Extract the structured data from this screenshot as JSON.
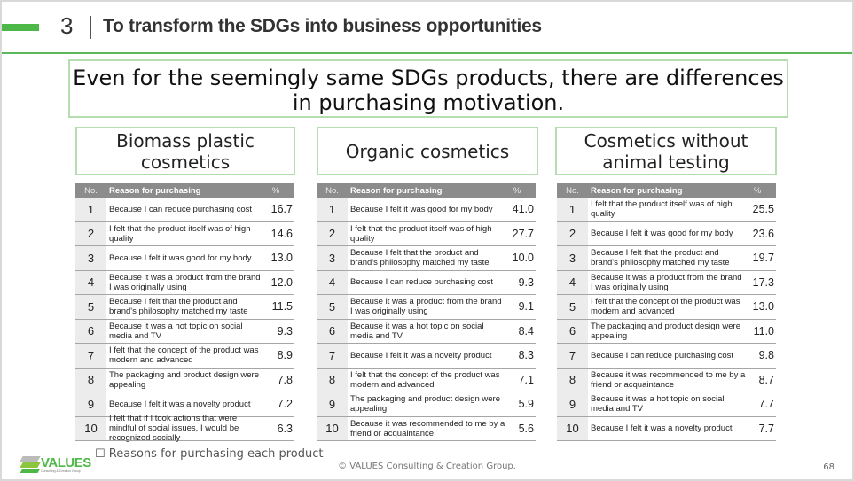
{
  "header": {
    "section_number": "3",
    "title": "To transform the SDGs into business opportunities",
    "accent_color": "#4db848"
  },
  "headline": "Even for the seemingly same SDGs products, there are differences in purchasing motivation.",
  "table_headers": {
    "no": "No.",
    "reason": "Reason for purchasing",
    "pct": "%"
  },
  "products": [
    {
      "name": "Biomass plastic cosmetics",
      "rows": [
        {
          "no": "1",
          "reason": "Because I can reduce purchasing cost",
          "pct": "16.7"
        },
        {
          "no": "2",
          "reason": "I felt that the product itself was of high quality",
          "pct": "14.6"
        },
        {
          "no": "3",
          "reason": "Because I felt it was good for my body",
          "pct": "13.0"
        },
        {
          "no": "4",
          "reason": "Because it was a product from the brand I was originally using",
          "pct": "12.0"
        },
        {
          "no": "5",
          "reason": "Because I felt that the product and brand's philosophy matched my taste",
          "pct": "11.5"
        },
        {
          "no": "6",
          "reason": "Because it was a hot topic on social media and TV",
          "pct": "9.3"
        },
        {
          "no": "7",
          "reason": "I felt that the concept of the product was modern and advanced",
          "pct": "8.9"
        },
        {
          "no": "8",
          "reason": "The packaging and product design were appealing",
          "pct": "7.8"
        },
        {
          "no": "9",
          "reason": "Because I felt it was a novelty product",
          "pct": "7.2"
        },
        {
          "no": "10",
          "reason": "I felt that if I took actions that were mindful of social issues, I would be recognized socially",
          "pct": "6.3"
        }
      ]
    },
    {
      "name": "Organic cosmetics",
      "rows": [
        {
          "no": "1",
          "reason": "Because I felt it was good for my body",
          "pct": "41.0"
        },
        {
          "no": "2",
          "reason": "I felt that the product itself was of high quality",
          "pct": "27.7"
        },
        {
          "no": "3",
          "reason": "Because I felt that the product and brand's philosophy matched my taste",
          "pct": "10.0"
        },
        {
          "no": "4",
          "reason": "Because I can reduce purchasing cost",
          "pct": "9.3"
        },
        {
          "no": "5",
          "reason": "Because it was a product from the brand I was originally using",
          "pct": "9.1"
        },
        {
          "no": "6",
          "reason": "Because it was a hot topic on social media and TV",
          "pct": "8.4"
        },
        {
          "no": "7",
          "reason": "Because I felt it was a novelty product",
          "pct": "8.3"
        },
        {
          "no": "8",
          "reason": "I felt that the concept of the product was modern and advanced",
          "pct": "7.1"
        },
        {
          "no": "9",
          "reason": "The packaging and product design were appealing",
          "pct": "5.9"
        },
        {
          "no": "10",
          "reason": "Because it was recommended to me by a friend or acquaintance",
          "pct": "5.6"
        }
      ]
    },
    {
      "name": "Cosmetics without animal testing",
      "rows": [
        {
          "no": "1",
          "reason": "I felt that the product itself was of high quality",
          "pct": "25.5"
        },
        {
          "no": "2",
          "reason": "Because I felt it was good for my body",
          "pct": "23.6"
        },
        {
          "no": "3",
          "reason": "Because I felt that the product and brand's philosophy matched my taste",
          "pct": "19.7"
        },
        {
          "no": "4",
          "reason": "Because it was a product from the brand I was originally using",
          "pct": "17.3"
        },
        {
          "no": "5",
          "reason": "I felt that the concept of the product was modern and advanced",
          "pct": "13.0"
        },
        {
          "no": "6",
          "reason": "The packaging and product design were appealing",
          "pct": "11.0"
        },
        {
          "no": "7",
          "reason": "Because I can reduce purchasing cost",
          "pct": "9.8"
        },
        {
          "no": "8",
          "reason": "Because it was recommended to me by a friend or acquaintance",
          "pct": "8.7"
        },
        {
          "no": "9",
          "reason": "Because it was a hot topic on social media and TV",
          "pct": "7.7"
        },
        {
          "no": "10",
          "reason": "Because I felt it was a novelty product",
          "pct": "7.7"
        }
      ]
    }
  ],
  "footer": {
    "caption": "☐ Reasons for purchasing each product",
    "copyright": "© VALUES Consulting & Creation Group.",
    "page_number": "68",
    "logo_word": "VALUES",
    "logo_sub": "Consulting & Creation Group"
  }
}
